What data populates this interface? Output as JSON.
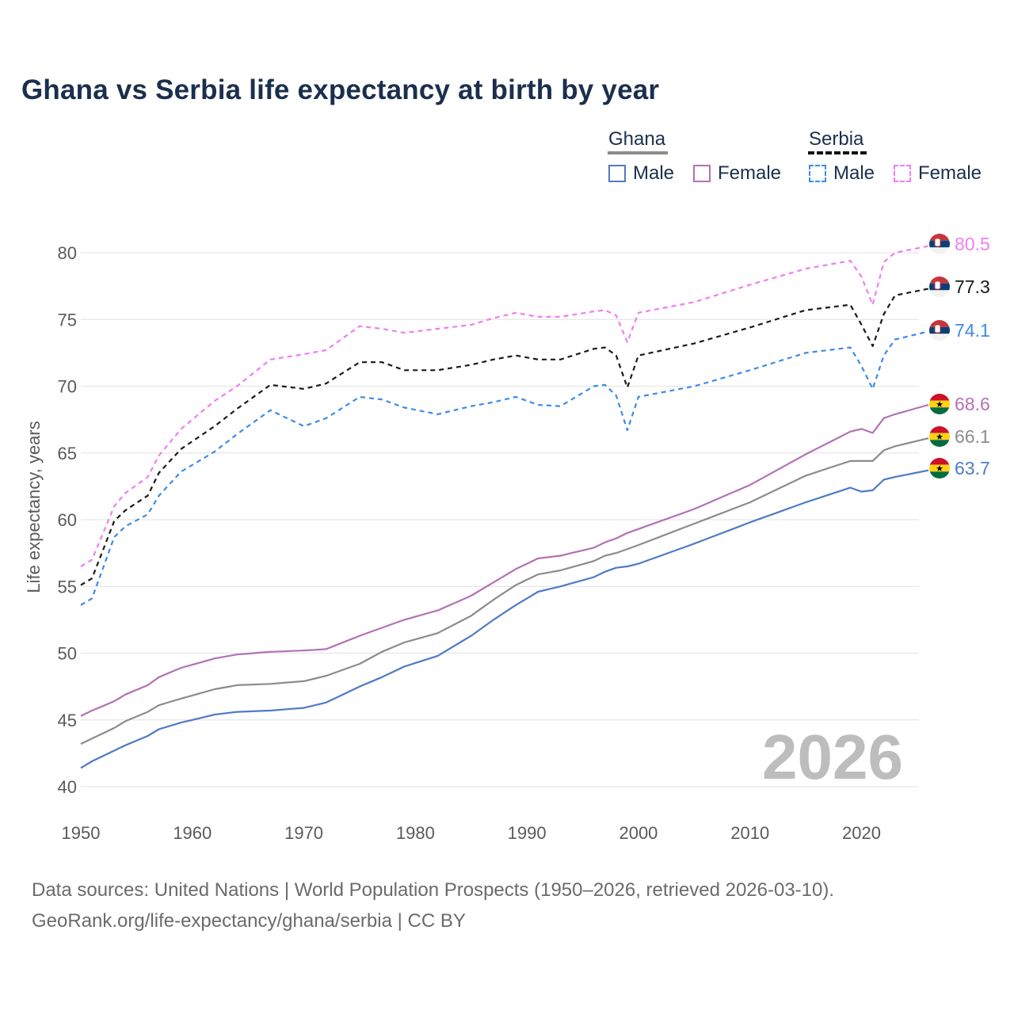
{
  "title": "Ghana vs Serbia life expectancy at birth by year",
  "legend": {
    "groups": [
      {
        "name": "Ghana",
        "line_color": "#8c8c8c",
        "line_style": "solid",
        "items": [
          {
            "label": "Male",
            "color": "#4f7bc4",
            "style": "solid"
          },
          {
            "label": "Female",
            "color": "#b271b5",
            "style": "solid"
          }
        ]
      },
      {
        "name": "Serbia",
        "line_color": "#111111",
        "line_style": "dashed",
        "items": [
          {
            "label": "Male",
            "color": "#3d8be8",
            "style": "dashed"
          },
          {
            "label": "Female",
            "color": "#f07ef0",
            "style": "dashed"
          }
        ]
      }
    ]
  },
  "watermark_year": "2026",
  "source": {
    "line1": "Data sources: United Nations | World Population Prospects (1950–2026, retrieved 2026-03-10).",
    "line2": "GeoRank.org/life-expectancy/ghana/serbia | CC BY"
  },
  "chart_data": {
    "type": "line",
    "title": "Ghana vs Serbia life expectancy at birth by year",
    "xlabel": "",
    "ylabel": "Life expectancy, years",
    "xlim": [
      1950,
      2026
    ],
    "ylim": [
      40,
      82
    ],
    "x_ticks": [
      1950,
      1960,
      1970,
      1980,
      1990,
      2000,
      2010,
      2020
    ],
    "y_ticks": [
      40,
      45,
      50,
      55,
      60,
      65,
      70,
      75,
      80
    ],
    "grid": "horizontal",
    "anchors": [
      1950,
      1951,
      1953,
      1954,
      1956,
      1957,
      1959,
      1962,
      1964,
      1967,
      1970,
      1972,
      1975,
      1977,
      1979,
      1982,
      1985,
      1987,
      1989,
      1991,
      1993,
      1996,
      1997,
      1998,
      1999,
      2000,
      2005,
      2010,
      2015,
      2019,
      2020,
      2021,
      2022,
      2023,
      2026
    ],
    "series": [
      {
        "name": "Serbia Female",
        "country": "Serbia",
        "color": "#f07ef0",
        "dash": "6,5",
        "end_label": "80.5",
        "anchor_values": [
          56.5,
          57.0,
          61.0,
          62.0,
          63.2,
          64.8,
          66.8,
          68.9,
          70.0,
          72.0,
          72.4,
          72.7,
          74.5,
          74.3,
          74.0,
          74.3,
          74.6,
          75.1,
          75.5,
          75.2,
          75.2,
          75.6,
          75.7,
          75.3,
          73.3,
          75.5,
          76.3,
          77.6,
          78.8,
          79.4,
          78.2,
          76.1,
          79.3,
          80.0,
          80.5
        ]
      },
      {
        "name": "Serbia total",
        "country": "Serbia",
        "color": "#1a1a1a",
        "dash": "6,5",
        "end_label": "77.3",
        "anchor_values": [
          55.1,
          55.6,
          59.9,
          60.7,
          61.8,
          63.5,
          65.3,
          67.0,
          68.3,
          70.1,
          69.8,
          70.2,
          71.8,
          71.8,
          71.2,
          71.2,
          71.6,
          72.0,
          72.3,
          72.0,
          72.0,
          72.8,
          72.9,
          72.3,
          69.9,
          72.3,
          73.2,
          74.4,
          75.7,
          76.1,
          74.6,
          73.0,
          75.4,
          76.8,
          77.3
        ]
      },
      {
        "name": "Serbia Male",
        "country": "Serbia",
        "color": "#3d8be8",
        "dash": "6,5",
        "end_label": "74.1",
        "anchor_values": [
          53.6,
          54.1,
          58.7,
          59.5,
          60.4,
          61.8,
          63.6,
          65.1,
          66.4,
          68.2,
          67.0,
          67.6,
          69.2,
          69.0,
          68.4,
          67.9,
          68.5,
          68.8,
          69.2,
          68.6,
          68.5,
          70.0,
          70.1,
          69.3,
          66.7,
          69.2,
          70.0,
          71.2,
          72.5,
          72.9,
          71.5,
          69.8,
          72.3,
          73.5,
          74.1
        ]
      },
      {
        "name": "Ghana Female",
        "country": "Ghana",
        "color": "#b271b5",
        "dash": "",
        "end_label": "68.6",
        "anchor_values": [
          45.3,
          45.7,
          46.4,
          46.9,
          47.6,
          48.2,
          48.9,
          49.6,
          49.9,
          50.1,
          50.2,
          50.3,
          51.3,
          51.9,
          52.5,
          53.2,
          54.3,
          55.3,
          56.3,
          57.1,
          57.3,
          57.9,
          58.3,
          58.6,
          59.0,
          59.3,
          60.8,
          62.6,
          64.9,
          66.6,
          66.8,
          66.5,
          67.6,
          67.9,
          68.6
        ]
      },
      {
        "name": "Ghana total",
        "country": "Ghana",
        "color": "#8c8c8c",
        "dash": "",
        "end_label": "66.1",
        "anchor_values": [
          43.2,
          43.6,
          44.4,
          44.9,
          45.6,
          46.1,
          46.6,
          47.3,
          47.6,
          47.7,
          47.9,
          48.3,
          49.2,
          50.1,
          50.8,
          51.5,
          52.8,
          54.0,
          55.1,
          55.9,
          56.2,
          56.9,
          57.3,
          57.5,
          57.8,
          58.1,
          59.7,
          61.3,
          63.3,
          64.4,
          64.4,
          64.4,
          65.2,
          65.5,
          66.1
        ]
      },
      {
        "name": "Ghana Male",
        "country": "Ghana",
        "color": "#4f7bc4",
        "dash": "",
        "end_label": "63.7",
        "anchor_values": [
          41.4,
          41.9,
          42.7,
          43.1,
          43.8,
          44.3,
          44.8,
          45.4,
          45.6,
          45.7,
          45.9,
          46.3,
          47.5,
          48.2,
          49.0,
          49.8,
          51.3,
          52.5,
          53.6,
          54.6,
          55.0,
          55.7,
          56.1,
          56.4,
          56.5,
          56.7,
          58.2,
          59.8,
          61.3,
          62.4,
          62.1,
          62.2,
          63.0,
          63.2,
          63.7
        ]
      }
    ]
  }
}
